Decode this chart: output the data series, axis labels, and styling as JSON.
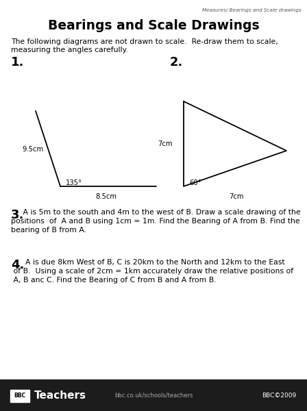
{
  "bg_color": "#ffffff",
  "header_text": "Measures/ Bearings and Scale drawings",
  "title": "Bearings and Scale Drawings",
  "intro_line1": "The following diagrams are not drawn to scale.  Re-draw them to scale,",
  "intro_line2": "measuring the angles carefully.",
  "q1_label": "1.",
  "q2_label": "2.",
  "q3_num": "3.",
  "q3_line1": " A is 5m to the south and 4m to the west of B. Draw a scale drawing of the",
  "q3_line2": "positions  of  A and B using 1cm = 1m. Find the Bearing of A from B. Find the",
  "q3_line3": "bearing of B from A.",
  "q4_num": "4.",
  "q4_line1": "  A is due 8km West of B, C is 20km to the North and 12km to the East",
  "q4_line2": " of B.  Using a scale of 2cm = 1km accurately draw the relative positions of",
  "q4_line3": " A, B anc C. Find the Bearing of C from B and A from B.",
  "label_95cm": "9.5cm",
  "label_135": "135°",
  "label_85cm": "8.5cm",
  "label_7cm_left": "7cm",
  "label_60": "60°",
  "label_7cm_bot": "7cm",
  "footer_url": "bbc.co.uk/schools/teachers",
  "footer_copy": "BBC©2009",
  "footer_bg": "#1c1c1c",
  "line_color": "#000000"
}
